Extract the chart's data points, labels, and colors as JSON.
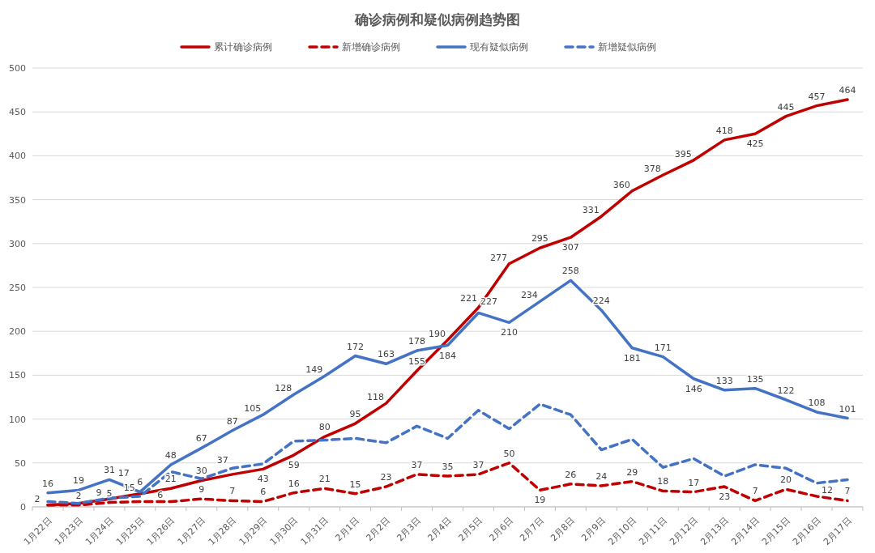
{
  "chart_data": {
    "type": "line",
    "title": "确诊病例和疑似病例趋势图",
    "categories": [
      "1月22日",
      "1月23日",
      "1月24日",
      "1月25日",
      "1月26日",
      "1月27日",
      "1月28日",
      "1月29日",
      "1月30日",
      "1月31日",
      "2月1日",
      "2月2日",
      "2月3日",
      "2月4日",
      "2月5日",
      "2月6日",
      "2月7日",
      "2月8日",
      "2月9日",
      "2月10日",
      "2月11日",
      "2月12日",
      "2月13日",
      "2月14日",
      "2月15日",
      "2月16日",
      "2月17日"
    ],
    "series": [
      {
        "name": "累计确诊病例",
        "color": "#c00000",
        "line_style": "solid",
        "values": [
          2,
          4,
          9,
          15,
          21,
          30,
          37,
          43,
          59,
          80,
          95,
          118,
          155,
          190,
          227,
          277,
          295,
          307,
          331,
          360,
          378,
          395,
          418,
          425,
          445,
          457,
          464
        ],
        "value_labels": [
          null,
          null,
          "9",
          "15",
          "21",
          "30",
          "37",
          "43",
          "59",
          "80",
          "95",
          "118",
          "155",
          "190",
          "227",
          "277",
          "295",
          "307",
          "331",
          "360",
          "378",
          "395",
          "418",
          "425",
          "445",
          "457",
          "464"
        ]
      },
      {
        "name": "新增确诊病例",
        "color": "#c00000",
        "line_style": "dashed",
        "values": [
          2,
          2,
          5,
          6,
          6,
          9,
          7,
          6,
          16,
          21,
          15,
          23,
          37,
          35,
          37,
          50,
          19,
          26,
          24,
          29,
          18,
          17,
          23,
          7,
          20,
          12,
          7
        ],
        "value_labels": [
          "2",
          "2",
          "5",
          "6",
          "6",
          "9",
          "7",
          "6",
          "16",
          "21",
          "15",
          "23",
          "37",
          "35",
          "37",
          "50",
          "19",
          "26",
          "24",
          "29",
          "18",
          "17",
          "23",
          "7",
          "20",
          "12",
          "7"
        ]
      },
      {
        "name": "现有疑似病例",
        "color": "#4472c4",
        "line_style": "solid",
        "values": [
          16,
          19,
          31,
          17,
          48,
          67,
          87,
          105,
          128,
          149,
          172,
          163,
          178,
          184,
          221,
          210,
          234,
          258,
          224,
          181,
          171,
          146,
          133,
          135,
          122,
          108,
          101
        ],
        "value_labels": [
          "16",
          "19",
          "31",
          "17",
          "48",
          "67",
          "87",
          "105",
          "128",
          "149",
          "172",
          "163",
          "178",
          "184",
          "221",
          "210",
          "234",
          "258",
          "224",
          "181",
          "171",
          "146",
          "133",
          "135",
          "122",
          "108",
          "101"
        ]
      },
      {
        "name": "新增疑似病例",
        "color": "#4472c4",
        "line_style": "dashed",
        "values": [
          6,
          4,
          10,
          12,
          40,
          32,
          44,
          49,
          75,
          76,
          78,
          73,
          92,
          78,
          110,
          89,
          117,
          105,
          65,
          77,
          45,
          55,
          35,
          48,
          44,
          27,
          31
        ]
      }
    ],
    "ylim": [
      0,
      500
    ],
    "yticks": [
      0,
      50,
      100,
      150,
      200,
      250,
      300,
      350,
      400,
      450,
      500
    ],
    "grid": "y",
    "legend": "top",
    "marker": "none"
  }
}
